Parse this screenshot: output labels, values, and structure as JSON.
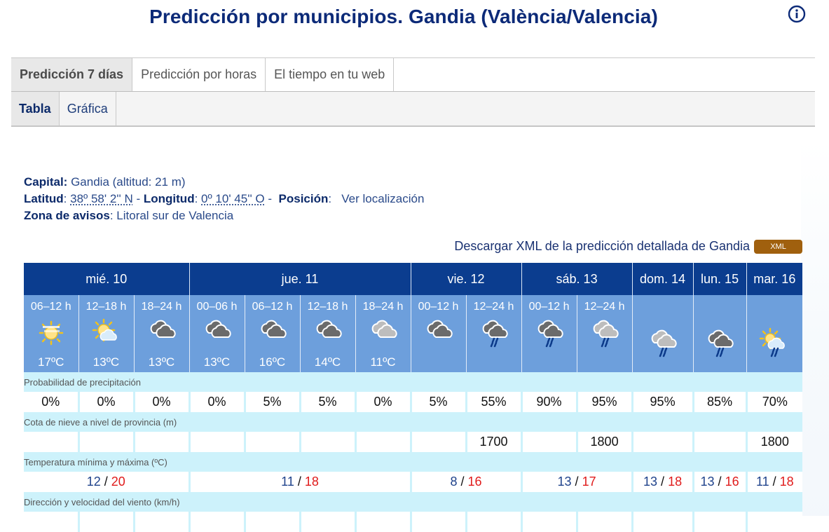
{
  "header": {
    "title": "Predicción por municipios. Gandia (València/Valencia)",
    "info_icon": "info-circle-icon"
  },
  "tabs": [
    {
      "label": "Predicción 7 días",
      "active": true
    },
    {
      "label": "Predicción por horas",
      "active": false
    },
    {
      "label": "El tiempo en tu web",
      "active": false
    }
  ],
  "subtabs": [
    {
      "label": "Tabla",
      "active": true
    },
    {
      "label": "Gráfica",
      "active": false
    }
  ],
  "location": {
    "capital_label": "Capital:",
    "capital_value": "Gandia (altitud: 21 m)",
    "lat_label": "Latitud",
    "lat_value": "38º 58' 2'' N",
    "lon_label": "Longitud",
    "lon_value": "0º 10' 45'' O",
    "pos_label": "Posición",
    "pos_link": "Ver localización",
    "zone_label": "Zona de avisos",
    "zone_value": "Litoral sur de Valencia"
  },
  "download": {
    "text": "Descargar XML de la predicción detallada de Gandia",
    "button": "XML"
  },
  "forecast": {
    "days": [
      {
        "label": "mié. 10",
        "span": 3
      },
      {
        "label": "jue. 11",
        "span": 4
      },
      {
        "label": "vie. 12",
        "span": 2
      },
      {
        "label": "sáb. 13",
        "span": 2
      },
      {
        "label": "dom. 14",
        "span": 1
      },
      {
        "label": "lun. 15",
        "span": 1
      },
      {
        "label": "mar. 16",
        "span": 1
      }
    ],
    "slots": [
      {
        "hours": "06–12 h",
        "icon": "sun-haze-icon",
        "temp": "17ºC"
      },
      {
        "hours": "12–18 h",
        "icon": "sun-cloud-icon",
        "temp": "13ºC"
      },
      {
        "hours": "18–24 h",
        "icon": "overcast-dark-icon",
        "temp": "13ºC"
      },
      {
        "hours": "00–06 h",
        "icon": "overcast-dark-icon",
        "temp": "13ºC"
      },
      {
        "hours": "06–12 h",
        "icon": "overcast-dark-icon",
        "temp": "16ºC"
      },
      {
        "hours": "12–18 h",
        "icon": "overcast-dark-icon",
        "temp": "14ºC"
      },
      {
        "hours": "18–24 h",
        "icon": "overcast-light-icon",
        "temp": "11ºC"
      },
      {
        "hours": "00–12 h",
        "icon": "overcast-dark-icon",
        "temp": ""
      },
      {
        "hours": "12–24 h",
        "icon": "cloud-light-rain-icon",
        "temp": ""
      },
      {
        "hours": "00–12 h",
        "icon": "cloud-rain-dark-icon",
        "temp": ""
      },
      {
        "hours": "12–24 h",
        "icon": "cloud-rain-light-icon",
        "temp": ""
      },
      {
        "hours": "",
        "icon": "cloud-rain-light-icon",
        "temp": ""
      },
      {
        "hours": "",
        "icon": "cloud-rain-dark-icon",
        "temp": ""
      },
      {
        "hours": "",
        "icon": "sun-cloud-rain-icon",
        "temp": ""
      }
    ],
    "precip_label": "Probabilidad de precipitación",
    "precip": [
      "0%",
      "0%",
      "0%",
      "0%",
      "5%",
      "5%",
      "0%",
      "5%",
      "55%",
      "90%",
      "95%",
      "95%",
      "85%",
      "70%"
    ],
    "snow_label": "Cota de nieve a nivel de provincia (m)",
    "snow": [
      "",
      "",
      "",
      "",
      "",
      "",
      "",
      "",
      "1700",
      "",
      "1800",
      "",
      "",
      "1800"
    ],
    "temp_label": "Temperatura mínima y máxima (ºC)",
    "temps": [
      {
        "min": "12",
        "max": "20",
        "span": 3
      },
      {
        "min": "11",
        "max": "18",
        "span": 4
      },
      {
        "min": "8",
        "max": "16",
        "span": 2
      },
      {
        "min": "13",
        "max": "17",
        "span": 2
      },
      {
        "min": "13",
        "max": "18",
        "span": 1
      },
      {
        "min": "13",
        "max": "16",
        "span": 1
      },
      {
        "min": "11",
        "max": "18",
        "span": 1
      }
    ],
    "wind_label": "Dirección y velocidad del viento (km/h)"
  },
  "colors": {
    "title": "#0c2a78",
    "day_header": "#0b3d8f",
    "slot_bg": "#6d9fdc",
    "label_bg": "#cdf2fb",
    "temp_min": "#20438c",
    "temp_max": "#e01b1b",
    "xml_button": "#a0600e"
  }
}
